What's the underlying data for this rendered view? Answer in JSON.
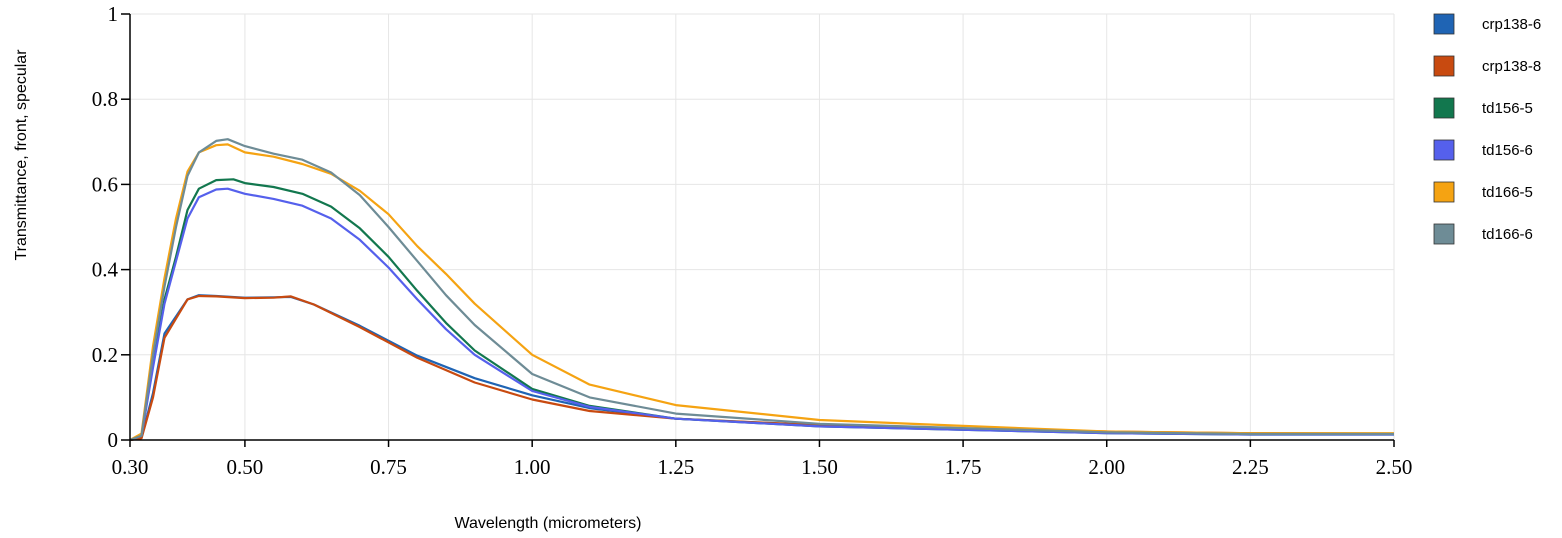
{
  "chart_data": {
    "type": "line",
    "title": "",
    "xlabel": "Wavelength (micrometers)",
    "ylabel": "Transmittance, front, specular",
    "xlim": [
      0.3,
      2.5
    ],
    "ylim": [
      0,
      1
    ],
    "x_ticks": [
      0.3,
      0.5,
      0.75,
      1.0,
      1.25,
      1.5,
      1.75,
      2.0,
      2.25,
      2.5
    ],
    "x_tick_labels": [
      "0.30",
      "0.50",
      "0.75",
      "1.00",
      "1.25",
      "1.50",
      "1.75",
      "2.00",
      "2.25",
      "2.50"
    ],
    "y_ticks": [
      0,
      0.2,
      0.4,
      0.6,
      0.8,
      1
    ],
    "y_tick_labels": [
      "0",
      "0.2",
      "0.4",
      "0.6",
      "0.8",
      "1"
    ],
    "grid": true,
    "legend_position": "right",
    "series": [
      {
        "name": "crp138-6",
        "color": "#1f64b4",
        "points": [
          [
            0.3,
            0
          ],
          [
            0.32,
            0.005
          ],
          [
            0.34,
            0.11
          ],
          [
            0.36,
            0.25
          ],
          [
            0.38,
            0.29
          ],
          [
            0.4,
            0.33
          ],
          [
            0.42,
            0.34
          ],
          [
            0.45,
            0.338
          ],
          [
            0.5,
            0.334
          ],
          [
            0.55,
            0.335
          ],
          [
            0.58,
            0.336
          ],
          [
            0.62,
            0.318
          ],
          [
            0.7,
            0.268
          ],
          [
            0.8,
            0.198
          ],
          [
            0.9,
            0.145
          ],
          [
            1.0,
            0.105
          ],
          [
            1.1,
            0.075
          ],
          [
            1.25,
            0.05
          ],
          [
            1.5,
            0.034
          ],
          [
            1.75,
            0.026
          ],
          [
            2.0,
            0.018
          ],
          [
            2.25,
            0.014
          ],
          [
            2.5,
            0.014
          ]
        ]
      },
      {
        "name": "crp138-8",
        "color": "#c84a10",
        "points": [
          [
            0.3,
            0
          ],
          [
            0.32,
            0.004
          ],
          [
            0.34,
            0.1
          ],
          [
            0.36,
            0.24
          ],
          [
            0.38,
            0.285
          ],
          [
            0.4,
            0.33
          ],
          [
            0.42,
            0.338
          ],
          [
            0.45,
            0.337
          ],
          [
            0.5,
            0.333
          ],
          [
            0.55,
            0.334
          ],
          [
            0.58,
            0.337
          ],
          [
            0.62,
            0.318
          ],
          [
            0.7,
            0.265
          ],
          [
            0.8,
            0.193
          ],
          [
            0.9,
            0.135
          ],
          [
            1.0,
            0.095
          ],
          [
            1.1,
            0.068
          ],
          [
            1.25,
            0.05
          ],
          [
            1.5,
            0.035
          ],
          [
            1.75,
            0.026
          ],
          [
            2.0,
            0.02
          ],
          [
            2.25,
            0.016
          ],
          [
            2.5,
            0.015
          ]
        ]
      },
      {
        "name": "td156-5",
        "color": "#12774e",
        "points": [
          [
            0.3,
            0
          ],
          [
            0.32,
            0.01
          ],
          [
            0.34,
            0.18
          ],
          [
            0.36,
            0.33
          ],
          [
            0.38,
            0.43
          ],
          [
            0.4,
            0.54
          ],
          [
            0.42,
            0.59
          ],
          [
            0.45,
            0.61
          ],
          [
            0.48,
            0.612
          ],
          [
            0.5,
            0.603
          ],
          [
            0.55,
            0.594
          ],
          [
            0.6,
            0.578
          ],
          [
            0.65,
            0.548
          ],
          [
            0.7,
            0.497
          ],
          [
            0.75,
            0.43
          ],
          [
            0.8,
            0.35
          ],
          [
            0.85,
            0.275
          ],
          [
            0.9,
            0.21
          ],
          [
            1.0,
            0.12
          ],
          [
            1.1,
            0.08
          ],
          [
            1.25,
            0.05
          ],
          [
            1.5,
            0.032
          ],
          [
            1.75,
            0.024
          ],
          [
            2.0,
            0.016
          ],
          [
            2.25,
            0.013
          ],
          [
            2.5,
            0.013
          ]
        ]
      },
      {
        "name": "td156-6",
        "color": "#5560ec",
        "points": [
          [
            0.3,
            0
          ],
          [
            0.32,
            0.01
          ],
          [
            0.34,
            0.17
          ],
          [
            0.36,
            0.32
          ],
          [
            0.38,
            0.42
          ],
          [
            0.4,
            0.52
          ],
          [
            0.42,
            0.57
          ],
          [
            0.45,
            0.588
          ],
          [
            0.47,
            0.59
          ],
          [
            0.5,
            0.578
          ],
          [
            0.55,
            0.566
          ],
          [
            0.6,
            0.55
          ],
          [
            0.65,
            0.52
          ],
          [
            0.7,
            0.47
          ],
          [
            0.75,
            0.405
          ],
          [
            0.8,
            0.33
          ],
          [
            0.85,
            0.26
          ],
          [
            0.9,
            0.2
          ],
          [
            1.0,
            0.115
          ],
          [
            1.1,
            0.078
          ],
          [
            1.25,
            0.05
          ],
          [
            1.5,
            0.032
          ],
          [
            1.75,
            0.024
          ],
          [
            2.0,
            0.016
          ],
          [
            2.25,
            0.013
          ],
          [
            2.5,
            0.013
          ]
        ]
      },
      {
        "name": "td166-5",
        "color": "#f5a312",
        "points": [
          [
            0.3,
            0
          ],
          [
            0.32,
            0.015
          ],
          [
            0.34,
            0.22
          ],
          [
            0.36,
            0.38
          ],
          [
            0.38,
            0.52
          ],
          [
            0.4,
            0.63
          ],
          [
            0.42,
            0.675
          ],
          [
            0.45,
            0.692
          ],
          [
            0.47,
            0.694
          ],
          [
            0.5,
            0.675
          ],
          [
            0.55,
            0.665
          ],
          [
            0.6,
            0.648
          ],
          [
            0.65,
            0.625
          ],
          [
            0.7,
            0.585
          ],
          [
            0.75,
            0.53
          ],
          [
            0.8,
            0.455
          ],
          [
            0.85,
            0.39
          ],
          [
            0.9,
            0.32
          ],
          [
            1.0,
            0.2
          ],
          [
            1.1,
            0.13
          ],
          [
            1.25,
            0.082
          ],
          [
            1.5,
            0.047
          ],
          [
            1.75,
            0.033
          ],
          [
            2.0,
            0.02
          ],
          [
            2.25,
            0.016
          ],
          [
            2.5,
            0.016
          ]
        ]
      },
      {
        "name": "td166-6",
        "color": "#6e8c96",
        "points": [
          [
            0.3,
            0
          ],
          [
            0.32,
            0.01
          ],
          [
            0.34,
            0.2
          ],
          [
            0.36,
            0.36
          ],
          [
            0.38,
            0.5
          ],
          [
            0.4,
            0.62
          ],
          [
            0.42,
            0.675
          ],
          [
            0.45,
            0.702
          ],
          [
            0.47,
            0.706
          ],
          [
            0.5,
            0.69
          ],
          [
            0.55,
            0.672
          ],
          [
            0.6,
            0.658
          ],
          [
            0.65,
            0.628
          ],
          [
            0.7,
            0.575
          ],
          [
            0.75,
            0.5
          ],
          [
            0.8,
            0.42
          ],
          [
            0.85,
            0.34
          ],
          [
            0.9,
            0.27
          ],
          [
            1.0,
            0.155
          ],
          [
            1.1,
            0.1
          ],
          [
            1.25,
            0.062
          ],
          [
            1.5,
            0.038
          ],
          [
            1.75,
            0.028
          ],
          [
            2.0,
            0.018
          ],
          [
            2.25,
            0.014
          ],
          [
            2.5,
            0.014
          ]
        ]
      }
    ]
  }
}
